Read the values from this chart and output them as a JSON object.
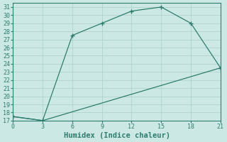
{
  "xlabel": "Humidex (Indice chaleur)",
  "line1_x": [
    0,
    3,
    6,
    9,
    12,
    15,
    18,
    21
  ],
  "line1_y": [
    17.5,
    17,
    27.5,
    29,
    30.5,
    31,
    29,
    23.5
  ],
  "line2_x": [
    0,
    3,
    21
  ],
  "line2_y": [
    17.5,
    17,
    23.5
  ],
  "line_color": "#2e7d6e",
  "bg_color": "#cce8e4",
  "grid_color": "#aacfca",
  "ylim": [
    17,
    31.5
  ],
  "xlim": [
    0,
    21
  ],
  "xticks": [
    0,
    3,
    6,
    9,
    12,
    15,
    18,
    21
  ],
  "yticks": [
    17,
    18,
    19,
    20,
    21,
    22,
    23,
    24,
    25,
    26,
    27,
    28,
    29,
    30,
    31
  ],
  "marker": "+",
  "marker_size": 4,
  "linewidth": 0.9,
  "xlabel_fontsize": 7.5,
  "tick_fontsize": 6
}
